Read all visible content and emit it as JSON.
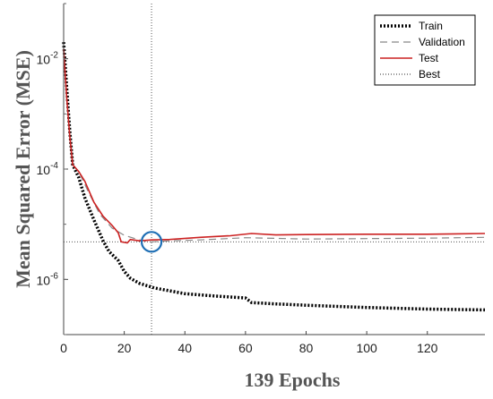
{
  "chart_data": {
    "type": "line",
    "title": "",
    "xlabel": "139 Epochs",
    "ylabel": "Mean Squared Error (MSE)",
    "xlim": [
      0,
      139
    ],
    "ylim": [
      1e-07,
      0.1
    ],
    "yscale": "log",
    "xticks": [
      0,
      20,
      40,
      60,
      80,
      100,
      120
    ],
    "yticks": [
      {
        "value": 0.01,
        "base": "10",
        "exp": "-2"
      },
      {
        "value": 0.0001,
        "base": "10",
        "exp": "-4"
      },
      {
        "value": 1e-06,
        "base": "10",
        "exp": "-6"
      }
    ],
    "legend_position": "top-right",
    "grid": false,
    "best_epoch": 29,
    "best_value": 4.8e-06,
    "series": [
      {
        "name": "Train",
        "color": "#000000",
        "style": "dotted",
        "points": [
          [
            0,
            0.02
          ],
          [
            1,
            0.003
          ],
          [
            2,
            0.0005
          ],
          [
            3,
            0.00012
          ],
          [
            5,
            7e-05
          ],
          [
            7,
            3e-05
          ],
          [
            10,
            1.2e-05
          ],
          [
            13,
            5e-06
          ],
          [
            15,
            3.2e-06
          ],
          [
            18,
            2.2e-06
          ],
          [
            20,
            1.4e-06
          ],
          [
            22,
            1.05e-06
          ],
          [
            25,
            8.5e-07
          ],
          [
            30,
            7e-07
          ],
          [
            40,
            5.5e-07
          ],
          [
            50,
            5e-07
          ],
          [
            60,
            4.6e-07
          ],
          [
            62,
            3.8e-07
          ],
          [
            70,
            3.6e-07
          ],
          [
            80,
            3.4e-07
          ],
          [
            100,
            3.1e-07
          ],
          [
            120,
            2.9e-07
          ],
          [
            139,
            2.8e-07
          ]
        ]
      },
      {
        "name": "Validation",
        "color": "#888888",
        "style": "dashed",
        "points": [
          [
            0,
            0.015
          ],
          [
            1,
            0.002
          ],
          [
            2,
            0.0004
          ],
          [
            3,
            0.00012
          ],
          [
            5,
            9e-05
          ],
          [
            8,
            4e-05
          ],
          [
            12,
            1.5e-05
          ],
          [
            16,
            8.5e-06
          ],
          [
            20,
            6.3e-06
          ],
          [
            25,
            5.2e-06
          ],
          [
            29,
            4.8e-06
          ],
          [
            35,
            5e-06
          ],
          [
            45,
            5.2e-06
          ],
          [
            60,
            5.7e-06
          ],
          [
            80,
            5.4e-06
          ],
          [
            100,
            5.5e-06
          ],
          [
            120,
            5.6e-06
          ],
          [
            139,
            5.8e-06
          ]
        ]
      },
      {
        "name": "Test",
        "color": "#cc2222",
        "style": "solid",
        "points": [
          [
            0,
            0.015
          ],
          [
            1,
            0.002
          ],
          [
            2,
            0.0004
          ],
          [
            3,
            0.00012
          ],
          [
            5,
            9e-05
          ],
          [
            7,
            6e-05
          ],
          [
            10,
            2.5e-05
          ],
          [
            13,
            1.4e-05
          ],
          [
            16,
            9.5e-06
          ],
          [
            18,
            7e-06
          ],
          [
            19,
            4.8e-06
          ],
          [
            21,
            4.6e-06
          ],
          [
            22,
            5.3e-06
          ],
          [
            25,
            5e-06
          ],
          [
            29,
            5.2e-06
          ],
          [
            35,
            5.3e-06
          ],
          [
            45,
            5.8e-06
          ],
          [
            55,
            6.2e-06
          ],
          [
            62,
            6.8e-06
          ],
          [
            70,
            6.4e-06
          ],
          [
            80,
            6.5e-06
          ],
          [
            100,
            6.6e-06
          ],
          [
            120,
            6.6e-06
          ],
          [
            139,
            6.8e-06
          ]
        ]
      },
      {
        "name": "Best",
        "color": "#555555",
        "style": "dotted"
      }
    ]
  }
}
